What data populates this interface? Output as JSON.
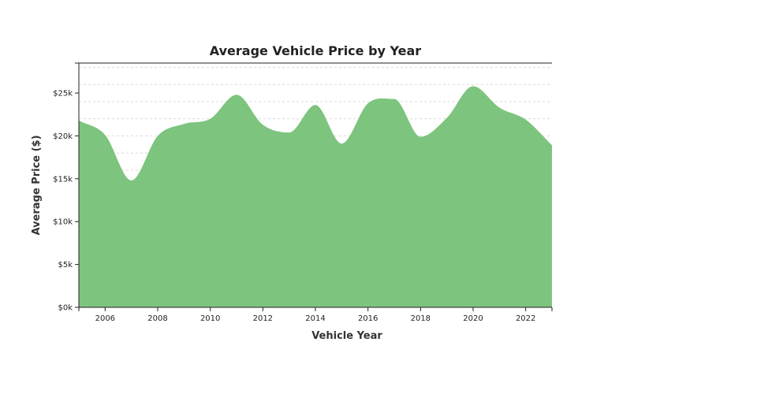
{
  "chart_data": {
    "type": "area",
    "title": "Average Vehicle Price by Year",
    "xlabel": "Vehicle Year",
    "ylabel": "Average Price ($)",
    "x": [
      2005,
      2006,
      2007,
      2008,
      2009,
      2010,
      2011,
      2012,
      2013,
      2014,
      2015,
      2016,
      2017,
      2018,
      2019,
      2020,
      2021,
      2022,
      2023
    ],
    "series": [
      {
        "values": [
          21800,
          20100,
          14800,
          20000,
          21400,
          22000,
          24800,
          21300,
          20400,
          23600,
          19100,
          23800,
          24300,
          19900,
          22100,
          25800,
          23300,
          21900,
          18900
        ]
      }
    ],
    "xlim": [
      2005,
      2023
    ],
    "ylim": [
      0,
      28500
    ],
    "x_ticks": [
      2006,
      2008,
      2010,
      2012,
      2014,
      2016,
      2018,
      2020,
      2022
    ],
    "x_tick_labels": [
      "2006",
      "2008",
      "2010",
      "2012",
      "2014",
      "2016",
      "2018",
      "2020",
      "2022"
    ],
    "y_ticks": [
      0,
      5000,
      10000,
      15000,
      20000,
      25000
    ],
    "y_tick_labels": [
      "$0k",
      "$5k",
      "$10k",
      "$15k",
      "$20k",
      "$25k"
    ],
    "grid": "horizontal-dashed",
    "legend": "none",
    "fill_color": "#7dc47f"
  }
}
